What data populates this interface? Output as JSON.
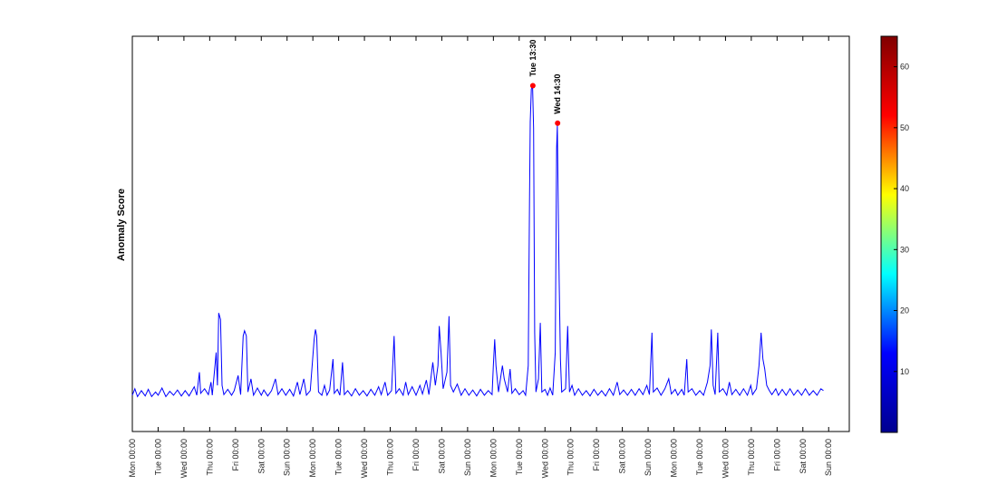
{
  "chart_data": {
    "type": "line",
    "title": "",
    "xlabel": "",
    "ylabel": "Anomaly Score",
    "ylim": [
      -5,
      55
    ],
    "grid": false,
    "legend": "none",
    "x_tick_labels": [
      "Mon 00:00",
      "Tue 00:00",
      "Wed 00:00",
      "Thu 00:00",
      "Fri 00:00",
      "Sat 00:00",
      "Sun 00:00",
      "Mon 00:00",
      "Tue 00:00",
      "Wed 00:00",
      "Thu 00:00",
      "Fri 00:00",
      "Sat 00:00",
      "Sun 00:00",
      "Mon 00:00",
      "Tue 00:00",
      "Wed 00:00",
      "Thu 00:00",
      "Fri 00:00",
      "Sat 00:00",
      "Sun 00:00",
      "Mon 00:00",
      "Tue 00:00",
      "Wed 00:00",
      "Thu 00:00",
      "Fri 00:00",
      "Sat 00:00",
      "Sun 00:00"
    ],
    "x_unit": "days from first Monday 00:00",
    "xlim": [
      0,
      27.8
    ],
    "series": [
      {
        "color": "#0000ff",
        "points": [
          [
            0.0,
            0.5
          ],
          [
            0.1,
            1.5
          ],
          [
            0.2,
            0.3
          ],
          [
            0.35,
            1.2
          ],
          [
            0.5,
            0.4
          ],
          [
            0.62,
            1.4
          ],
          [
            0.75,
            0.3
          ],
          [
            0.9,
            1.0
          ],
          [
            1.0,
            0.5
          ],
          [
            1.15,
            1.6
          ],
          [
            1.3,
            0.3
          ],
          [
            1.45,
            1.1
          ],
          [
            1.6,
            0.5
          ],
          [
            1.75,
            1.3
          ],
          [
            1.9,
            0.4
          ],
          [
            2.05,
            1.2
          ],
          [
            2.2,
            0.4
          ],
          [
            2.4,
            1.8
          ],
          [
            2.5,
            0.5
          ],
          [
            2.6,
            4.0
          ],
          [
            2.65,
            0.8
          ],
          [
            2.8,
            1.5
          ],
          [
            2.95,
            0.6
          ],
          [
            3.05,
            2.5
          ],
          [
            3.1,
            0.5
          ],
          [
            3.25,
            7.0
          ],
          [
            3.3,
            2.0
          ],
          [
            3.35,
            13.0
          ],
          [
            3.42,
            12.0
          ],
          [
            3.48,
            2.0
          ],
          [
            3.55,
            0.6
          ],
          [
            3.7,
            1.4
          ],
          [
            3.85,
            0.5
          ],
          [
            3.95,
            1.2
          ],
          [
            4.1,
            3.5
          ],
          [
            4.2,
            0.6
          ],
          [
            4.3,
            9.5
          ],
          [
            4.35,
            10.3
          ],
          [
            4.42,
            9.5
          ],
          [
            4.48,
            1.0
          ],
          [
            4.6,
            3.0
          ],
          [
            4.7,
            0.5
          ],
          [
            4.85,
            1.6
          ],
          [
            5.0,
            0.5
          ],
          [
            5.1,
            1.3
          ],
          [
            5.25,
            0.4
          ],
          [
            5.4,
            1.2
          ],
          [
            5.55,
            3.0
          ],
          [
            5.65,
            0.6
          ],
          [
            5.8,
            1.5
          ],
          [
            5.95,
            0.5
          ],
          [
            6.1,
            1.4
          ],
          [
            6.25,
            0.4
          ],
          [
            6.4,
            2.5
          ],
          [
            6.5,
            0.6
          ],
          [
            6.65,
            3.0
          ],
          [
            6.75,
            0.5
          ],
          [
            6.9,
            1.2
          ],
          [
            7.05,
            9.0
          ],
          [
            7.1,
            10.5
          ],
          [
            7.15,
            9.5
          ],
          [
            7.22,
            1.0
          ],
          [
            7.35,
            0.5
          ],
          [
            7.45,
            2.0
          ],
          [
            7.55,
            0.5
          ],
          [
            7.65,
            1.3
          ],
          [
            7.78,
            6.0
          ],
          [
            7.83,
            0.8
          ],
          [
            7.95,
            1.4
          ],
          [
            8.05,
            0.5
          ],
          [
            8.15,
            5.5
          ],
          [
            8.22,
            0.6
          ],
          [
            8.35,
            1.2
          ],
          [
            8.5,
            0.4
          ],
          [
            8.65,
            1.5
          ],
          [
            8.8,
            0.5
          ],
          [
            8.95,
            1.2
          ],
          [
            9.1,
            0.4
          ],
          [
            9.25,
            1.4
          ],
          [
            9.4,
            0.5
          ],
          [
            9.55,
            1.8
          ],
          [
            9.65,
            0.6
          ],
          [
            9.8,
            2.5
          ],
          [
            9.9,
            0.5
          ],
          [
            10.05,
            1.2
          ],
          [
            10.15,
            9.5
          ],
          [
            10.22,
            0.8
          ],
          [
            10.35,
            1.5
          ],
          [
            10.5,
            0.5
          ],
          [
            10.6,
            2.5
          ],
          [
            10.7,
            0.6
          ],
          [
            10.85,
            1.8
          ],
          [
            11.0,
            0.5
          ],
          [
            11.15,
            2.0
          ],
          [
            11.25,
            0.7
          ],
          [
            11.4,
            2.8
          ],
          [
            11.5,
            0.6
          ],
          [
            11.65,
            5.5
          ],
          [
            11.75,
            2.0
          ],
          [
            11.85,
            5.0
          ],
          [
            11.9,
            11.0
          ],
          [
            11.97,
            7.0
          ],
          [
            12.05,
            1.5
          ],
          [
            12.2,
            4.0
          ],
          [
            12.28,
            12.5
          ],
          [
            12.34,
            2.0
          ],
          [
            12.45,
            1.0
          ],
          [
            12.6,
            2.2
          ],
          [
            12.75,
            0.5
          ],
          [
            12.9,
            1.5
          ],
          [
            13.05,
            0.5
          ],
          [
            13.2,
            1.3
          ],
          [
            13.35,
            0.4
          ],
          [
            13.5,
            1.4
          ],
          [
            13.65,
            0.5
          ],
          [
            13.8,
            1.2
          ],
          [
            13.95,
            0.6
          ],
          [
            14.0,
            5.0
          ],
          [
            14.05,
            9.0
          ],
          [
            14.1,
            5.0
          ],
          [
            14.2,
            1.0
          ],
          [
            14.35,
            5.0
          ],
          [
            14.42,
            3.0
          ],
          [
            14.55,
            1.0
          ],
          [
            14.65,
            4.5
          ],
          [
            14.72,
            0.8
          ],
          [
            14.85,
            1.5
          ],
          [
            15.0,
            0.6
          ],
          [
            15.15,
            1.2
          ],
          [
            15.25,
            0.5
          ],
          [
            15.35,
            5.0
          ],
          [
            15.4,
            30.0
          ],
          [
            15.43,
            42.0
          ],
          [
            15.47,
            47.0
          ],
          [
            15.52,
            47.3
          ],
          [
            15.56,
            41.0
          ],
          [
            15.6,
            10.0
          ],
          [
            15.65,
            1.0
          ],
          [
            15.75,
            3.0
          ],
          [
            15.82,
            11.5
          ],
          [
            15.88,
            1.0
          ],
          [
            16.0,
            1.4
          ],
          [
            16.1,
            0.5
          ],
          [
            16.2,
            1.6
          ],
          [
            16.3,
            0.5
          ],
          [
            16.4,
            7.0
          ],
          [
            16.45,
            38.0
          ],
          [
            16.48,
            41.5
          ],
          [
            16.52,
            28.0
          ],
          [
            16.55,
            18.0
          ],
          [
            16.6,
            6.0
          ],
          [
            16.65,
            1.0
          ],
          [
            16.8,
            1.5
          ],
          [
            16.88,
            11.0
          ],
          [
            16.95,
            1.0
          ],
          [
            17.05,
            2.0
          ],
          [
            17.15,
            0.5
          ],
          [
            17.3,
            1.5
          ],
          [
            17.45,
            0.5
          ],
          [
            17.6,
            1.2
          ],
          [
            17.75,
            0.4
          ],
          [
            17.9,
            1.4
          ],
          [
            18.05,
            0.5
          ],
          [
            18.2,
            1.2
          ],
          [
            18.35,
            0.4
          ],
          [
            18.5,
            1.5
          ],
          [
            18.65,
            0.5
          ],
          [
            18.8,
            2.5
          ],
          [
            18.9,
            0.6
          ],
          [
            19.05,
            1.3
          ],
          [
            19.2,
            0.5
          ],
          [
            19.35,
            1.4
          ],
          [
            19.5,
            0.5
          ],
          [
            19.65,
            1.5
          ],
          [
            19.8,
            0.6
          ],
          [
            19.95,
            2.0
          ],
          [
            20.05,
            0.6
          ],
          [
            20.15,
            10.0
          ],
          [
            20.2,
            1.0
          ],
          [
            20.35,
            1.6
          ],
          [
            20.5,
            0.5
          ],
          [
            20.65,
            1.5
          ],
          [
            20.8,
            3.0
          ],
          [
            20.9,
            0.7
          ],
          [
            21.05,
            1.4
          ],
          [
            21.15,
            0.5
          ],
          [
            21.3,
            1.4
          ],
          [
            21.4,
            0.5
          ],
          [
            21.5,
            6.0
          ],
          [
            21.55,
            1.0
          ],
          [
            21.7,
            1.5
          ],
          [
            21.85,
            0.5
          ],
          [
            22.0,
            1.2
          ],
          [
            22.15,
            0.5
          ],
          [
            22.3,
            2.5
          ],
          [
            22.4,
            5.0
          ],
          [
            22.45,
            10.5
          ],
          [
            22.52,
            2.0
          ],
          [
            22.6,
            0.6
          ],
          [
            22.7,
            10.0
          ],
          [
            22.76,
            1.0
          ],
          [
            22.9,
            1.5
          ],
          [
            23.05,
            0.5
          ],
          [
            23.15,
            2.5
          ],
          [
            23.25,
            0.6
          ],
          [
            23.4,
            1.4
          ],
          [
            23.55,
            0.5
          ],
          [
            23.7,
            1.5
          ],
          [
            23.85,
            0.5
          ],
          [
            23.98,
            2.0
          ],
          [
            24.05,
            0.6
          ],
          [
            24.2,
            1.5
          ],
          [
            24.3,
            5.0
          ],
          [
            24.38,
            10.0
          ],
          [
            24.45,
            6.0
          ],
          [
            24.52,
            4.5
          ],
          [
            24.6,
            2.0
          ],
          [
            24.7,
            1.2
          ],
          [
            24.8,
            0.6
          ],
          [
            24.95,
            1.5
          ],
          [
            25.05,
            0.5
          ],
          [
            25.2,
            1.4
          ],
          [
            25.35,
            0.5
          ],
          [
            25.5,
            1.5
          ],
          [
            25.65,
            0.5
          ],
          [
            25.8,
            1.3
          ],
          [
            25.95,
            0.5
          ],
          [
            26.1,
            1.5
          ],
          [
            26.25,
            0.5
          ],
          [
            26.4,
            1.2
          ],
          [
            26.55,
            0.5
          ],
          [
            26.7,
            1.5
          ],
          [
            26.8,
            1.2
          ]
        ]
      }
    ],
    "highlights": [
      {
        "label": "Tue 13:30",
        "x": 15.53,
        "y": 47.5,
        "color": "#ff0000"
      },
      {
        "label": "Wed 14:30",
        "x": 16.49,
        "y": 41.8,
        "color": "#ff0000"
      }
    ],
    "colorbar": {
      "range": [
        0,
        65
      ],
      "ticks": [
        10,
        20,
        30,
        40,
        50,
        60
      ],
      "colormap": "jet",
      "stops": [
        "#00008f",
        "#0000ff",
        "#00ffff",
        "#ffff00",
        "#ff0000",
        "#800000"
      ]
    }
  }
}
